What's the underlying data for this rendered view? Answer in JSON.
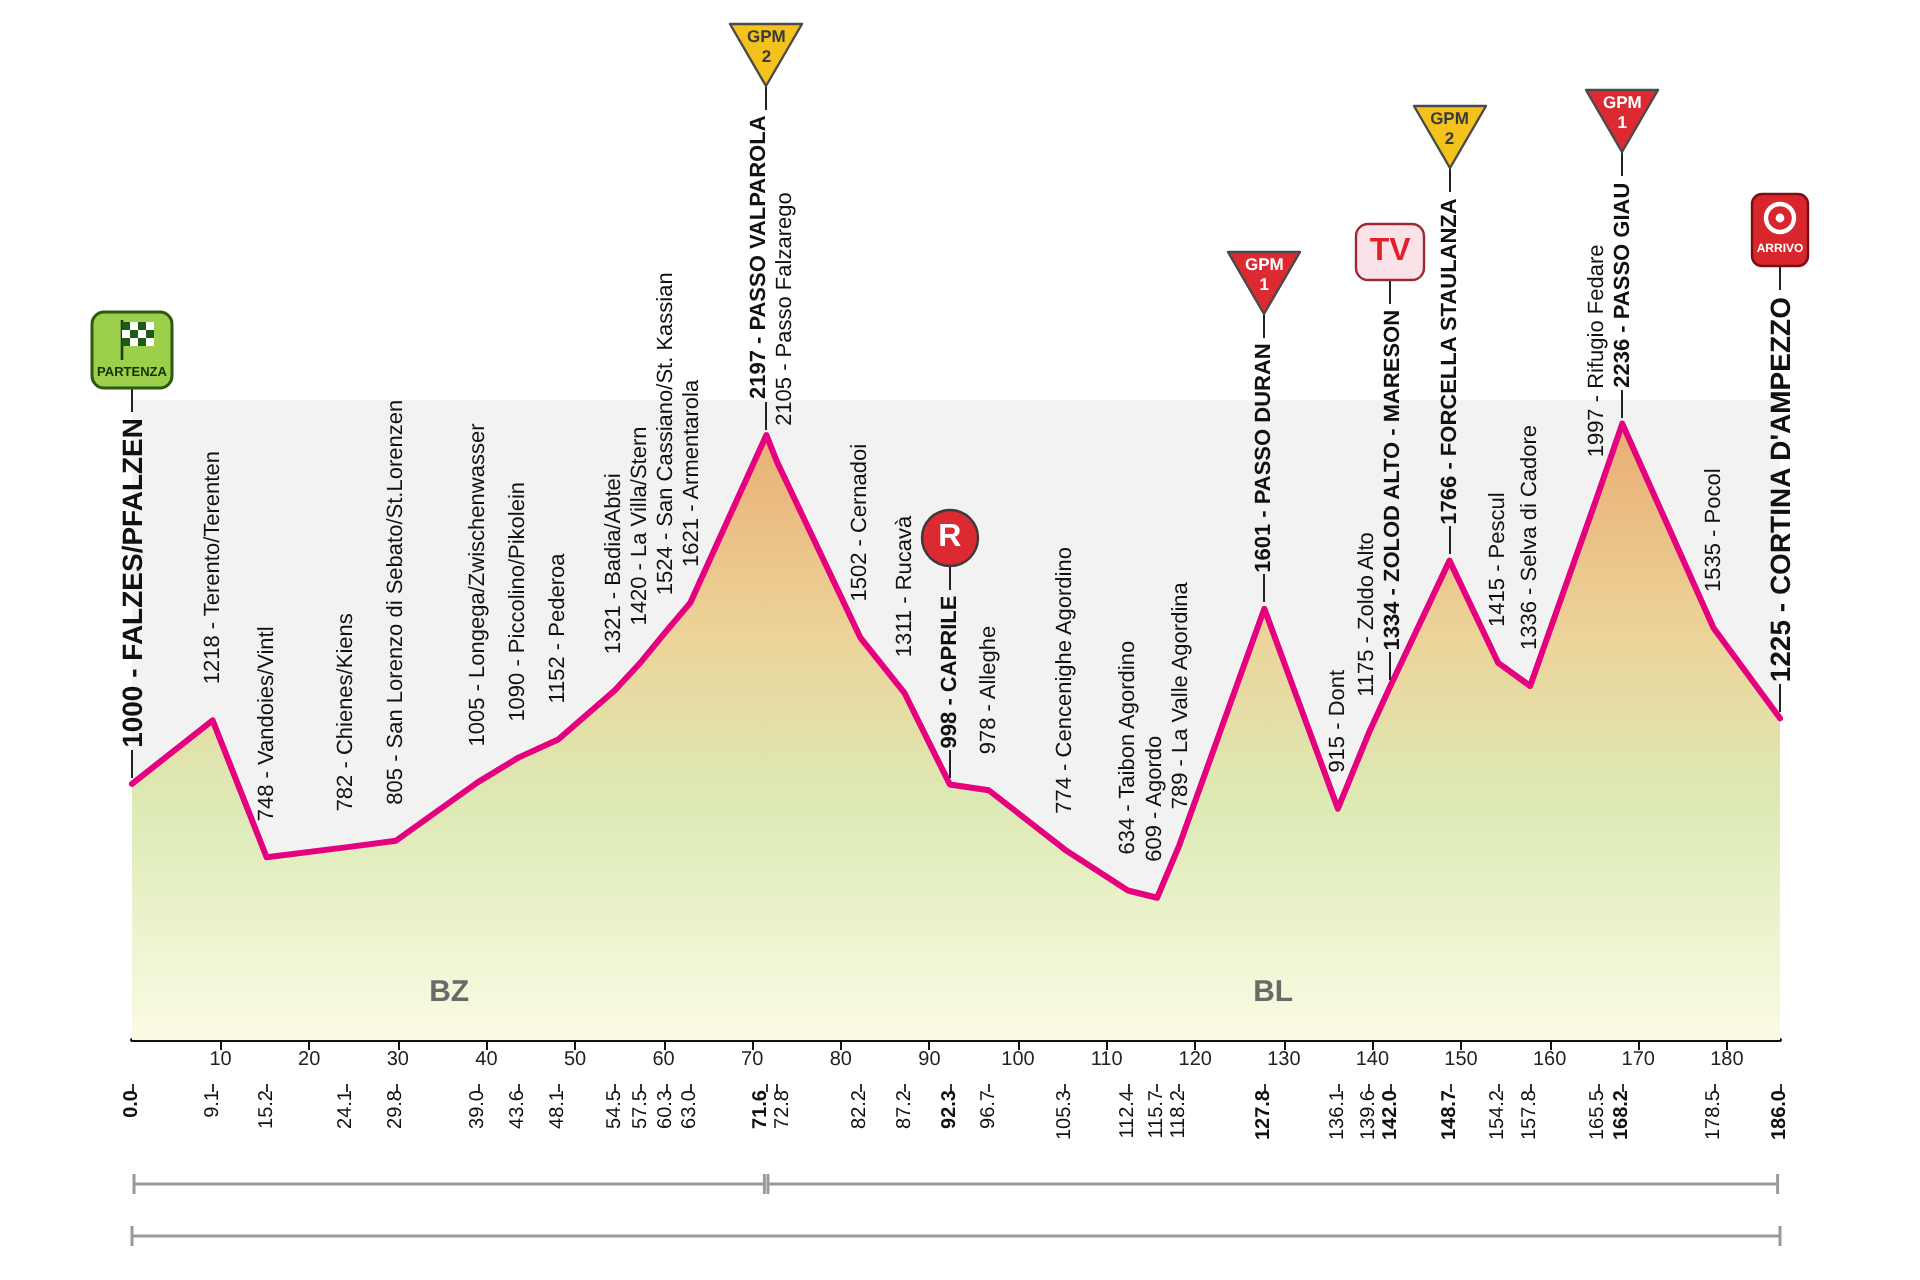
{
  "chart_data": {
    "type": "area",
    "x": [
      0.0,
      9.1,
      15.2,
      24.1,
      29.8,
      39.0,
      43.6,
      48.1,
      54.5,
      57.5,
      60.3,
      63.0,
      71.6,
      72.8,
      82.2,
      87.2,
      92.3,
      96.7,
      105.3,
      112.4,
      115.7,
      118.2,
      127.8,
      136.1,
      139.6,
      142.0,
      148.7,
      154.2,
      157.8,
      165.5,
      168.2,
      178.5,
      186.0
    ],
    "values": [
      1000,
      1218,
      748,
      782,
      805,
      1005,
      1090,
      1152,
      1321,
      1420,
      1524,
      1621,
      2197,
      2105,
      1502,
      1311,
      998,
      978,
      774,
      634,
      609,
      789,
      1601,
      915,
      1175,
      1334,
      1766,
      1415,
      1336,
      1997,
      2236,
      1535,
      1225
    ],
    "value_labels": [
      "1000 - FALZES/PFALZEN",
      "1218 - Terento/Terenten",
      "748 - Vandoies/Vintl",
      "782 - Chienes/Kiens",
      "805 - San Lorenzo di Sebato/St.Lorenzen",
      "1005 - Longega/Zwischenwasser",
      "1090 - Piccolino/Pikolein",
      "1152 - Pederoa",
      "1321 - Badia/Abtei",
      "1420 - La Villa/Stern",
      "1524 - San Cassiano/St. Kassian",
      "1621 - Armentarola",
      "2197 - PASSO VALPAROLA",
      "2105 - Passo Falzarego",
      "1502 - Cernadoi",
      "1311 - Rucavà",
      "998 - CAPRILE",
      "978 - Alleghe",
      "774 - Cencenighe Agordino",
      "634 - Taibon Agordino",
      "609 - Agordo",
      "789 - La Valle Agordina",
      "1601 - PASSO DURAN",
      "915 - Dont",
      "1175 - Zoldo Alto",
      "1334 - ZOLOD ALTO - MARESON",
      "1766 - FORCELLA STAULANZA",
      "1415 - Pescul",
      "1336 - Selva di Cadore",
      "1997 - Rifugio Fedare",
      "2236 - PASSO GIAU",
      "1535 - Pocol",
      "1225 - CORTINA D'AMPEZZO"
    ],
    "color": "#e4007f",
    "xlim": [
      0,
      186
    ],
    "xticks": [
      10,
      20,
      30,
      40,
      50,
      60,
      70,
      80,
      90,
      100,
      110,
      120,
      130,
      140,
      150,
      160,
      170,
      180
    ],
    "x2lim": [
      0,
      186
    ],
    "x2ticks": [
      {
        "value": 0,
        "label": "0.0"
      },
      9.1,
      15.2,
      24.1,
      29.8,
      {
        "value": 39,
        "label": "39.0"
      },
      43.6,
      48.1,
      54.5,
      57.5,
      60.3,
      {
        "value": 63,
        "label": "63.0"
      },
      71.6,
      72.8,
      82.2,
      87.2,
      92.3,
      96.7,
      105.3,
      112.4,
      115.7,
      118.2,
      127.8,
      136.1,
      139.6,
      {
        "value": 142,
        "label": "142.0"
      },
      148.7,
      154.2,
      157.8,
      165.5,
      168.2,
      178.5,
      {
        "value": 186,
        "label": "186.0"
      }
    ],
    "tick_labels": "x",
    "annotations": [
      "PARTENZA",
      {
        "text": "GPM\n2",
        "x": 71.6
      },
      {
        "text": "R",
        "x": 92.3
      },
      {
        "text": "GPM\n1",
        "x": 127.8
      },
      {
        "text": "TV",
        "x": 142.0
      },
      {
        "text": "GPM\n2",
        "x": 148.7
      },
      {
        "text": "GPM\n1",
        "x": 168.2
      },
      "ARRIVO"
    ],
    "bands": [
      {
        "axis": "x",
        "from": 0,
        "to": 71.6,
        "label": "BZ",
        "color": "#f2f2f2"
      },
      {
        "axis": "x",
        "from": 71.6,
        "to": 186,
        "label": "BL",
        "color": "#f2f2f2"
      }
    ]
  }
}
